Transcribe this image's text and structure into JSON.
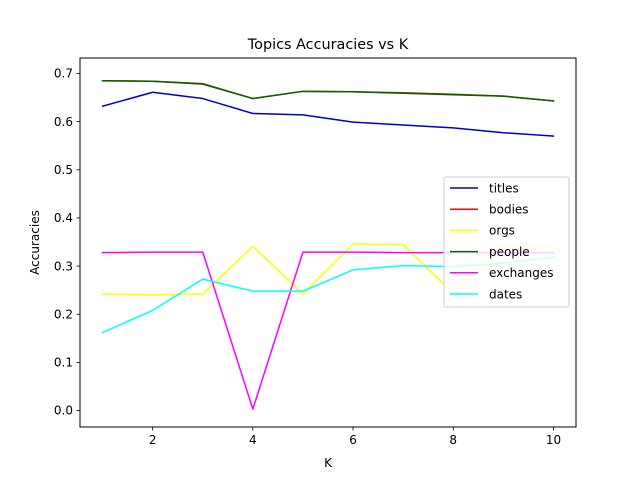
{
  "chart_data": {
    "type": "line",
    "title": "Topics Accuracies vs K",
    "xlabel": "K",
    "ylabel": "Accuracies",
    "xlim": [
      0.55,
      10.45
    ],
    "ylim": [
      -0.0342,
      0.7322
    ],
    "xticks": [
      2,
      4,
      6,
      8,
      10
    ],
    "yticks": [
      0.0,
      0.1,
      0.2,
      0.3,
      0.4,
      0.5,
      0.6,
      0.7
    ],
    "ytick_labels": [
      "0.0",
      "0.1",
      "0.2",
      "0.3",
      "0.4",
      "0.5",
      "0.6",
      "0.7"
    ],
    "grid": false,
    "legend_position": "center-right",
    "x": [
      1,
      2,
      3,
      4,
      5,
      6,
      7,
      8,
      9,
      10
    ],
    "series": [
      {
        "name": "titles",
        "color": "#0000cc",
        "values": [
          0.632,
          0.661,
          0.648,
          0.617,
          0.614,
          0.599,
          0.593,
          0.587,
          0.577,
          0.57
        ]
      },
      {
        "name": "bodies",
        "color": "#ff0000",
        "values": [
          0.685,
          0.684,
          0.679,
          0.648,
          0.663,
          0.662,
          0.66,
          0.657,
          0.653,
          0.643
        ]
      },
      {
        "name": "orgs",
        "color": "#ffff00",
        "values": [
          0.242,
          0.24,
          0.242,
          0.341,
          0.242,
          0.346,
          0.345,
          0.243,
          0.342,
          0.342
        ]
      },
      {
        "name": "people",
        "color": "#006600",
        "values": [
          0.685,
          0.684,
          0.678,
          0.648,
          0.663,
          0.662,
          0.659,
          0.656,
          0.653,
          0.643
        ]
      },
      {
        "name": "exchanges",
        "color": "#ff00ff",
        "values": [
          0.328,
          0.329,
          0.329,
          0.003,
          0.329,
          0.329,
          0.328,
          0.328,
          0.328,
          0.328
        ]
      },
      {
        "name": "dates",
        "color": "#00ffff",
        "values": [
          0.162,
          0.208,
          0.273,
          0.248,
          0.248,
          0.292,
          0.301,
          0.299,
          0.306,
          0.319
        ]
      }
    ]
  }
}
